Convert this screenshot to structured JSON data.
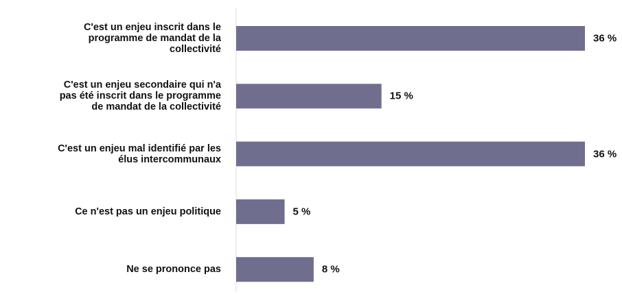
{
  "chart_data": {
    "type": "barh",
    "categories": [
      "C'est un enjeu inscrit dans le programme de mandat de la collectivité",
      "C'est un enjeu secondaire qui n'a pas été inscrit dans le programme de mandat de la collectivité",
      "C'est un enjeu mal identifié par les élus intercommunaux",
      "Ce n'est pas un enjeu politique",
      "Ne se prononce pas"
    ],
    "values": [
      36,
      15,
      36,
      5,
      8
    ],
    "value_labels": [
      "36 %",
      "15 %",
      "36 %",
      "5 %",
      "8 %"
    ],
    "color": "#6f6e8f"
  }
}
